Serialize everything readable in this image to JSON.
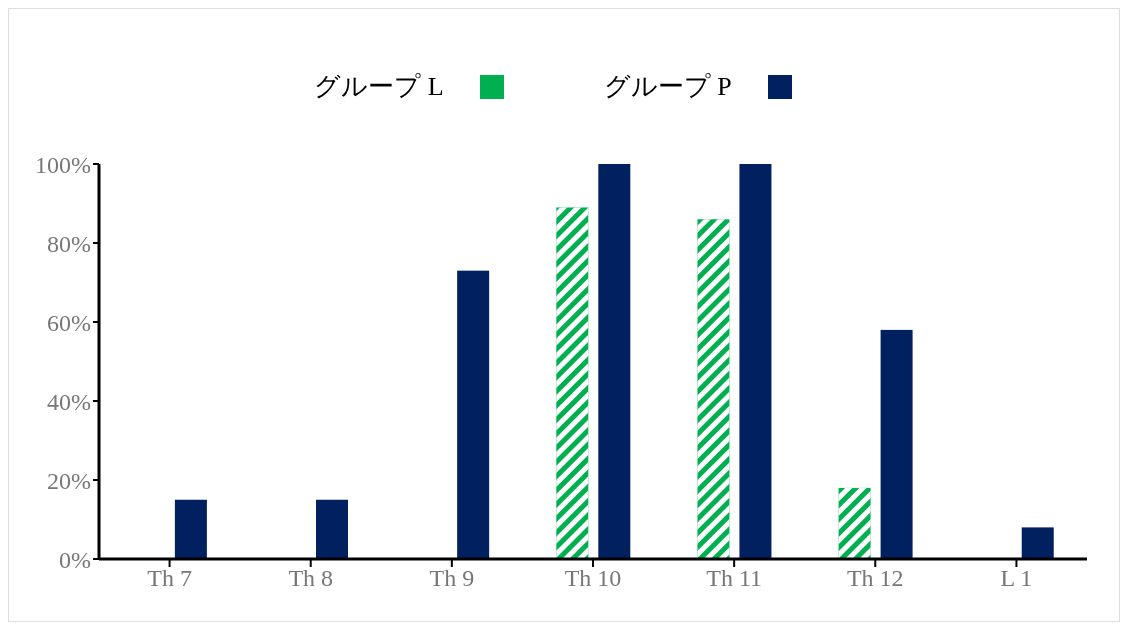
{
  "chart_data": {
    "type": "bar",
    "categories": [
      "Th 7",
      "Th 8",
      "Th 9",
      "Th 10",
      "Th 11",
      "Th 12",
      "L 1"
    ],
    "series": [
      {
        "name": "グループ L",
        "color": "#00b050",
        "values": [
          0,
          0,
          0,
          89,
          86,
          18,
          0
        ]
      },
      {
        "name": "グループ P",
        "color": "#002060",
        "values": [
          15,
          15,
          73,
          100,
          100,
          58,
          8
        ]
      }
    ],
    "ylim": [
      0,
      100
    ],
    "yticks": [
      {
        "value": 0,
        "label": "0%"
      },
      {
        "value": 20,
        "label": "20%"
      },
      {
        "value": 40,
        "label": "40%"
      },
      {
        "value": 60,
        "label": "60%"
      },
      {
        "value": 80,
        "label": "80%"
      },
      {
        "value": 100,
        "label": "100%"
      }
    ],
    "grid": false,
    "legend": "top"
  }
}
